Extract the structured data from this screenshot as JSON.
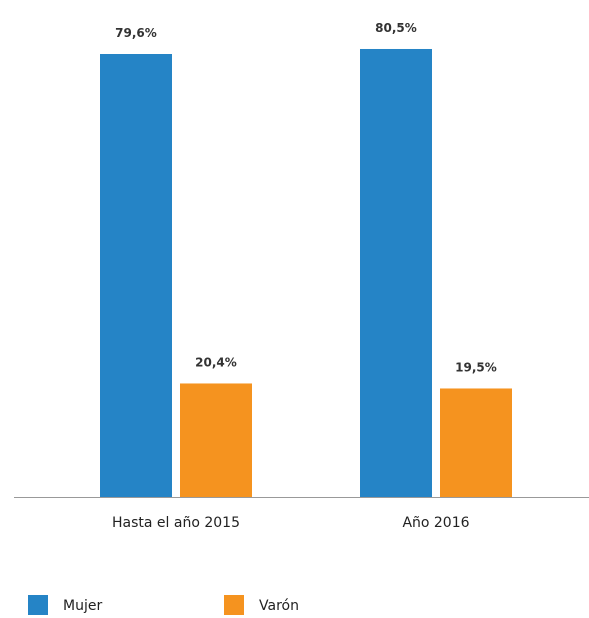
{
  "chart_data": {
    "type": "bar",
    "categories": [
      "Hasta el año 2015",
      "Año 2016"
    ],
    "series": [
      {
        "name": "Mujer",
        "values": [
          79.6,
          80.5
        ],
        "labels": [
          "79,6%",
          "80,5%"
        ],
        "color": "#2584c6"
      },
      {
        "name": "Varón",
        "values": [
          20.4,
          19.5
        ],
        "labels": [
          "20,4%",
          "19,5%"
        ],
        "color": "#f5931f"
      }
    ],
    "title": "",
    "xlabel": "",
    "ylabel": "",
    "ylim": [
      0,
      100
    ],
    "grid": false,
    "legend_position": "bottom-left",
    "axis_color": "#999999"
  }
}
